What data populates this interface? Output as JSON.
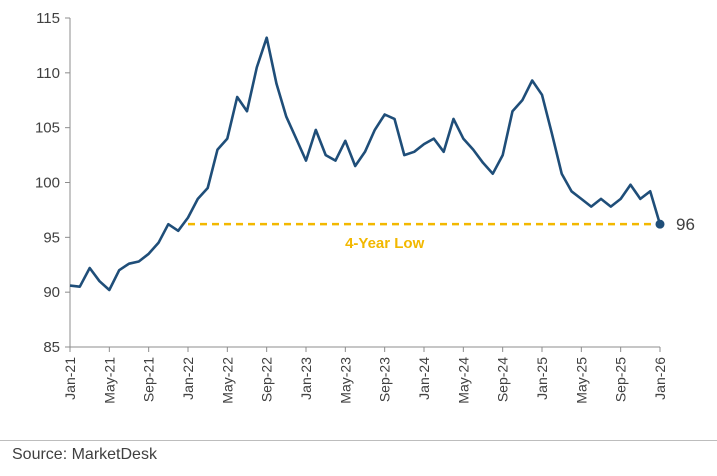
{
  "source": "Source: MarketDesk",
  "chart_data": {
    "type": "line",
    "title": "",
    "xlabel": "",
    "ylabel": "",
    "ylim": [
      85,
      115
    ],
    "yticks": [
      85,
      90,
      95,
      100,
      105,
      110,
      115
    ],
    "xticks": [
      "Jan-21",
      "May-21",
      "Sep-21",
      "Jan-22",
      "May-22",
      "Sep-22",
      "Jan-23",
      "May-23",
      "Sep-23",
      "Jan-24",
      "May-24",
      "Sep-24",
      "Jan-25",
      "May-25",
      "Sep-25",
      "Jan-26"
    ],
    "grid": false,
    "colors": {
      "line": "#1f4e79",
      "reference": "#f2b800",
      "marker": "#1f4e79"
    },
    "series": [
      {
        "values": [
          [
            "Jan-21",
            90.6
          ],
          [
            "Feb-21",
            90.5
          ],
          [
            "Mar-21",
            92.2
          ],
          [
            "Apr-21",
            91.0
          ],
          [
            "May-21",
            90.2
          ],
          [
            "Jun-21",
            92.0
          ],
          [
            "Jul-21",
            92.6
          ],
          [
            "Aug-21",
            92.8
          ],
          [
            "Sep-21",
            93.5
          ],
          [
            "Oct-21",
            94.5
          ],
          [
            "Nov-21",
            96.2
          ],
          [
            "Dec-21",
            95.6
          ],
          [
            "Jan-22",
            96.8
          ],
          [
            "Feb-22",
            98.5
          ],
          [
            "Mar-22",
            99.5
          ],
          [
            "Apr-22",
            103.0
          ],
          [
            "May-22",
            104.0
          ],
          [
            "Jun-22",
            107.8
          ],
          [
            "Jul-22",
            106.5
          ],
          [
            "Aug-22",
            110.5
          ],
          [
            "Sep-22",
            113.2
          ],
          [
            "Oct-22",
            109.0
          ],
          [
            "Nov-22",
            106.0
          ],
          [
            "Dec-22",
            104.0
          ],
          [
            "Jan-23",
            102.0
          ],
          [
            "Feb-23",
            104.8
          ],
          [
            "Mar-23",
            102.5
          ],
          [
            "Apr-23",
            102.0
          ],
          [
            "May-23",
            103.8
          ],
          [
            "Jun-23",
            101.5
          ],
          [
            "Jul-23",
            102.8
          ],
          [
            "Aug-23",
            104.8
          ],
          [
            "Sep-23",
            106.2
          ],
          [
            "Oct-23",
            105.8
          ],
          [
            "Nov-23",
            102.5
          ],
          [
            "Dec-23",
            102.8
          ],
          [
            "Jan-24",
            103.5
          ],
          [
            "Feb-24",
            104.0
          ],
          [
            "Mar-24",
            102.8
          ],
          [
            "Apr-24",
            105.8
          ],
          [
            "May-24",
            104.0
          ],
          [
            "Jun-24",
            103.0
          ],
          [
            "Jul-24",
            101.8
          ],
          [
            "Aug-24",
            100.8
          ],
          [
            "Sep-24",
            102.5
          ],
          [
            "Oct-24",
            106.5
          ],
          [
            "Nov-24",
            107.5
          ],
          [
            "Dec-24",
            109.3
          ],
          [
            "Jan-25",
            108.0
          ],
          [
            "Feb-25",
            104.5
          ],
          [
            "Mar-25",
            100.8
          ],
          [
            "Apr-25",
            99.2
          ],
          [
            "May-25",
            98.5
          ],
          [
            "Jun-25",
            97.8
          ],
          [
            "Jul-25",
            98.5
          ],
          [
            "Aug-25",
            97.8
          ],
          [
            "Sep-25",
            98.5
          ],
          [
            "Oct-25",
            99.8
          ],
          [
            "Nov-25",
            98.5
          ],
          [
            "Dec-25",
            99.2
          ],
          [
            "Jan-26",
            96.2
          ]
        ]
      }
    ],
    "reference_line": {
      "value": 96.2,
      "from": "Jan-22",
      "to": "Jan-26"
    },
    "annotation": "4-Year Low",
    "end_value_label": "96"
  }
}
